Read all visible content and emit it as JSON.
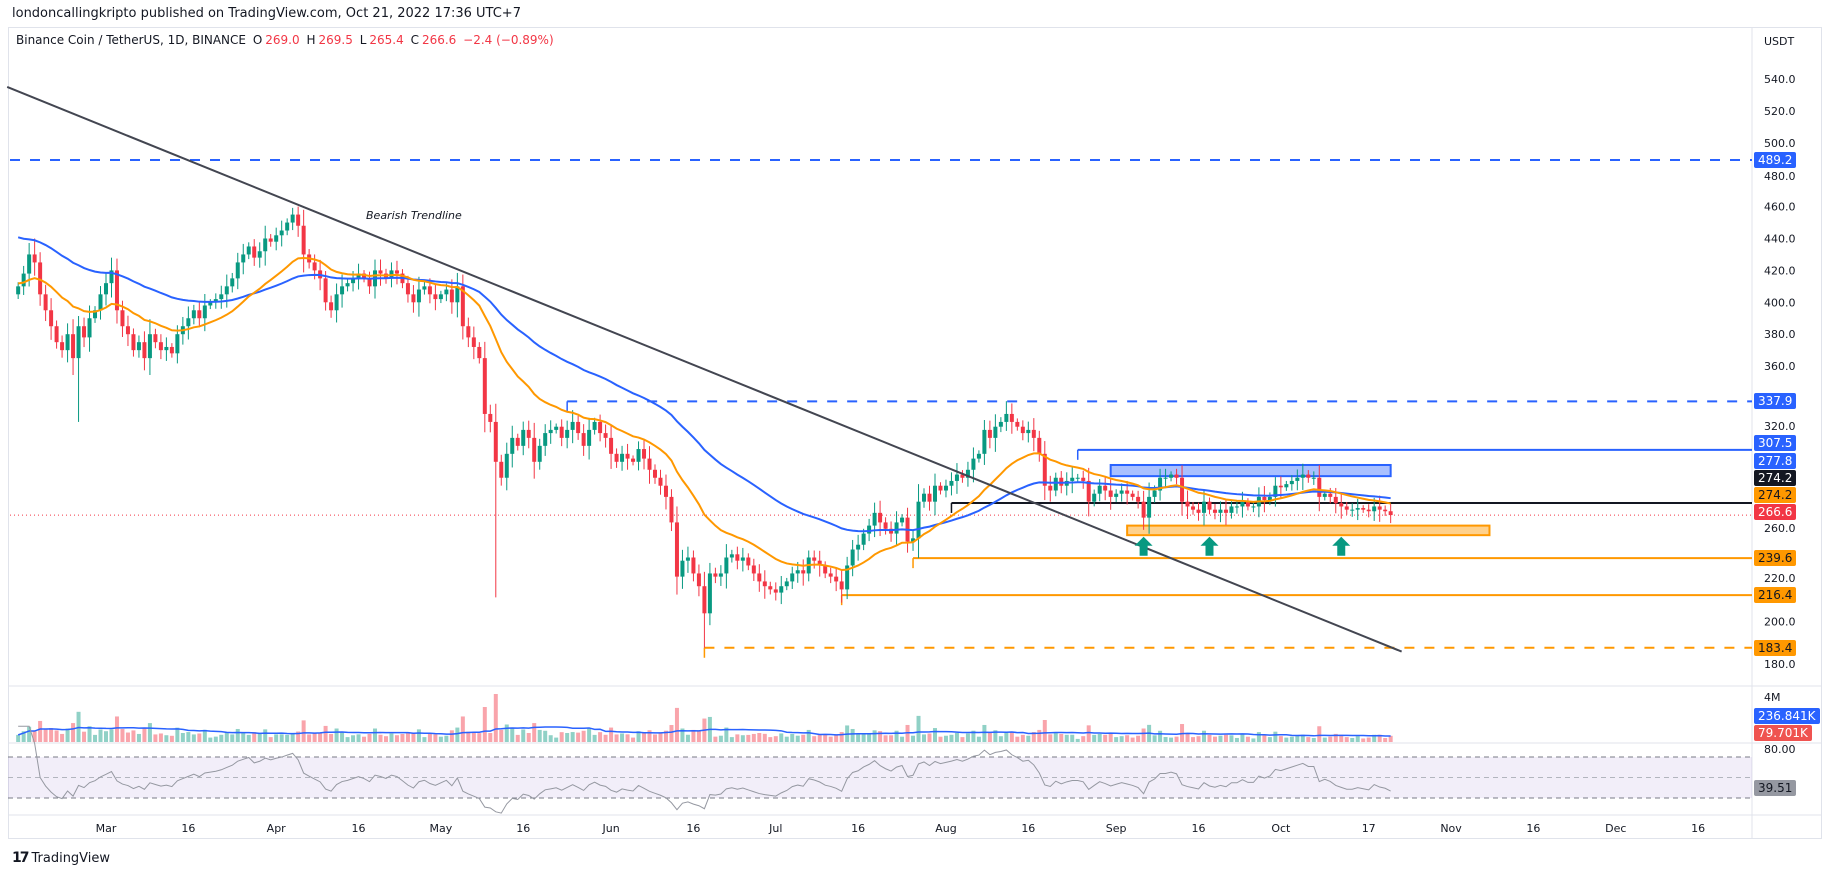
{
  "header": {
    "published": "londoncallingkripto published on TradingView.com, Oct 21, 2022 17:36 UTC+7"
  },
  "legend": {
    "symbol": "Binance Coin / TetherUS, 1D, BINANCE",
    "o_label": "O",
    "o": "269.0",
    "h_label": "H",
    "h": "269.5",
    "l_label": "L",
    "l": "265.4",
    "c_label": "C",
    "c": "266.6",
    "change": "−2.4 (−0.89%)"
  },
  "footer": {
    "brand": "TradingView"
  },
  "colors": {
    "up": "#089981",
    "down": "#f23645",
    "ema_fast": "#ff9800",
    "ema_slow": "#2962ff",
    "trendline": "#434651",
    "resistance": "#2962ff",
    "support": "#ff9800",
    "pivot": "#131722"
  },
  "chart_data": {
    "type": "candlestick",
    "title": "Binance Coin / TetherUS, 1D, BINANCE",
    "currency": "USDT",
    "start_date": "2022-02-13",
    "end_date": "2022-10-21",
    "ylim": [
      170,
      550
    ],
    "y_ticks": [
      540,
      520,
      500,
      480,
      460,
      440,
      420,
      400,
      380,
      360,
      320,
      260,
      220,
      200,
      180
    ],
    "y_tick_labels": [
      "540.0",
      "520.0",
      "500.0",
      "480.0",
      "460.0",
      "440.0",
      "420.0",
      "400.0",
      "380.0",
      "360.0",
      "320.0",
      "260.0",
      "220.0",
      "200.0",
      "180.0"
    ],
    "x_ticks": [
      {
        "day": 16,
        "label": "Mar"
      },
      {
        "day": 31,
        "label": "16"
      },
      {
        "day": 47,
        "label": "Apr"
      },
      {
        "day": 62,
        "label": "16"
      },
      {
        "day": 77,
        "label": "May"
      },
      {
        "day": 92,
        "label": "16"
      },
      {
        "day": 108,
        "label": "Jun"
      },
      {
        "day": 123,
        "label": "16"
      },
      {
        "day": 138,
        "label": "Jul"
      },
      {
        "day": 153,
        "label": "16"
      },
      {
        "day": 169,
        "label": "Aug"
      },
      {
        "day": 184,
        "label": "16"
      },
      {
        "day": 200,
        "label": "Sep"
      },
      {
        "day": 215,
        "label": "16"
      },
      {
        "day": 230,
        "label": "Oct"
      },
      {
        "day": 246,
        "label": "17"
      },
      {
        "day": 261,
        "label": "Nov"
      },
      {
        "day": 276,
        "label": "16"
      },
      {
        "day": 291,
        "label": "Dec"
      },
      {
        "day": 306,
        "label": "16"
      }
    ],
    "first_open": 405,
    "closes": [
      410,
      418,
      430,
      425,
      405,
      395,
      385,
      375,
      370,
      380,
      365,
      385,
      378,
      390,
      395,
      405,
      412,
      420,
      395,
      385,
      380,
      370,
      375,
      365,
      380,
      375,
      370,
      372,
      368,
      380,
      385,
      390,
      395,
      390,
      398,
      400,
      402,
      405,
      410,
      415,
      425,
      430,
      435,
      428,
      432,
      440,
      438,
      442,
      445,
      450,
      455,
      448,
      430,
      425,
      420,
      415,
      400,
      395,
      405,
      410,
      412,
      415,
      418,
      415,
      410,
      420,
      418,
      415,
      420,
      418,
      412,
      405,
      400,
      408,
      410,
      405,
      402,
      405,
      408,
      400,
      410,
      385,
      378,
      372,
      365,
      330,
      325,
      300,
      290,
      305,
      315,
      310,
      320,
      315,
      300,
      310,
      318,
      320,
      322,
      315,
      320,
      325,
      318,
      310,
      320,
      325,
      318,
      315,
      305,
      300,
      305,
      302,
      300,
      308,
      302,
      295,
      290,
      285,
      278,
      262,
      228,
      238,
      240,
      230,
      222,
      205,
      230,
      228,
      230,
      240,
      242,
      238,
      240,
      235,
      230,
      225,
      222,
      220,
      218,
      222,
      225,
      230,
      232,
      230,
      240,
      238,
      235,
      230,
      228,
      225,
      220,
      235,
      245,
      248,
      255,
      260,
      268,
      262,
      258,
      255,
      262,
      265,
      250,
      252,
      275,
      280,
      275,
      285,
      282,
      285,
      288,
      292,
      290,
      295,
      302,
      305,
      320,
      315,
      322,
      325,
      330,
      325,
      322,
      318,
      320,
      315,
      305,
      285,
      282,
      290,
      285,
      288,
      290,
      290,
      288,
      275,
      280,
      285,
      282,
      278,
      280,
      282,
      280,
      278,
      275,
      265,
      278,
      282,
      290,
      290,
      292,
      290,
      275,
      272,
      270,
      268,
      275,
      270,
      268,
      270,
      268,
      272,
      272,
      275,
      272,
      272,
      278,
      276,
      278,
      285,
      284,
      286,
      288,
      290,
      292,
      290,
      290,
      278,
      280,
      278,
      274,
      272,
      270,
      270,
      271,
      270,
      269,
      272,
      270,
      269,
      266.6
    ],
    "wick_extremes": [
      {
        "day": 3,
        "high": 440
      },
      {
        "day": 11,
        "low": 325
      },
      {
        "day": 51,
        "high": 460
      },
      {
        "day": 87,
        "low": 215
      },
      {
        "day": 125,
        "low": 183.4
      },
      {
        "day": 180,
        "high": 338
      }
    ],
    "indicators": {
      "ema_fast": {
        "period": 20,
        "seed": 412,
        "last": "274.2"
      },
      "ema_slow": {
        "period": 50,
        "seed": 442,
        "last": "277.8"
      },
      "volume": {
        "ma_label": "236.841K",
        "last_label": "79.701K",
        "scale_label": "4M"
      },
      "rsi": {
        "period": 14,
        "last": "39.51",
        "scale_label": "80.00",
        "bands": [
          70,
          50,
          30
        ]
      }
    },
    "levels": [
      {
        "price": 489.2,
        "label": "489.2",
        "style": "dashed",
        "color": "#2962ff",
        "from_day": -3
      },
      {
        "price": 337.9,
        "label": "337.9",
        "style": "dashed",
        "color": "#2962ff",
        "from_day": 100
      },
      {
        "price": 307.5,
        "label": "307.5",
        "style": "solid",
        "color": "#2962ff",
        "from_day": 193
      },
      {
        "price": 274.2,
        "label": "274.2",
        "style": "solid",
        "color": "#131722",
        "from_day": 170
      },
      {
        "price": 239.6,
        "label": "239.6",
        "style": "solid",
        "color": "#ff9800",
        "from_day": 163
      },
      {
        "price": 216.4,
        "label": "216.4",
        "style": "solid",
        "color": "#ff9800",
        "from_day": 150
      },
      {
        "price": 183.4,
        "label": "183.4",
        "style": "dashed",
        "color": "#ff9800",
        "from_day": 125
      }
    ],
    "last_price": {
      "price": 266.6,
      "label": "266.6"
    },
    "trendline": {
      "label": "Bearish Trendline",
      "from": [
        -2,
        535
      ],
      "to": [
        252,
        181
      ]
    },
    "zones": [
      {
        "name": "resistance-zone",
        "from_day": 199,
        "to_day": 250,
        "top": 298,
        "bottom": 291,
        "color": "#2962ff"
      },
      {
        "name": "support-zone",
        "from_day": 202,
        "to_day": 268,
        "top": 260,
        "bottom": 254,
        "color": "#ff9800"
      }
    ],
    "arrows": [
      {
        "day": 205,
        "price": 253
      },
      {
        "day": 217,
        "price": 253
      },
      {
        "day": 241,
        "price": 253
      }
    ]
  }
}
